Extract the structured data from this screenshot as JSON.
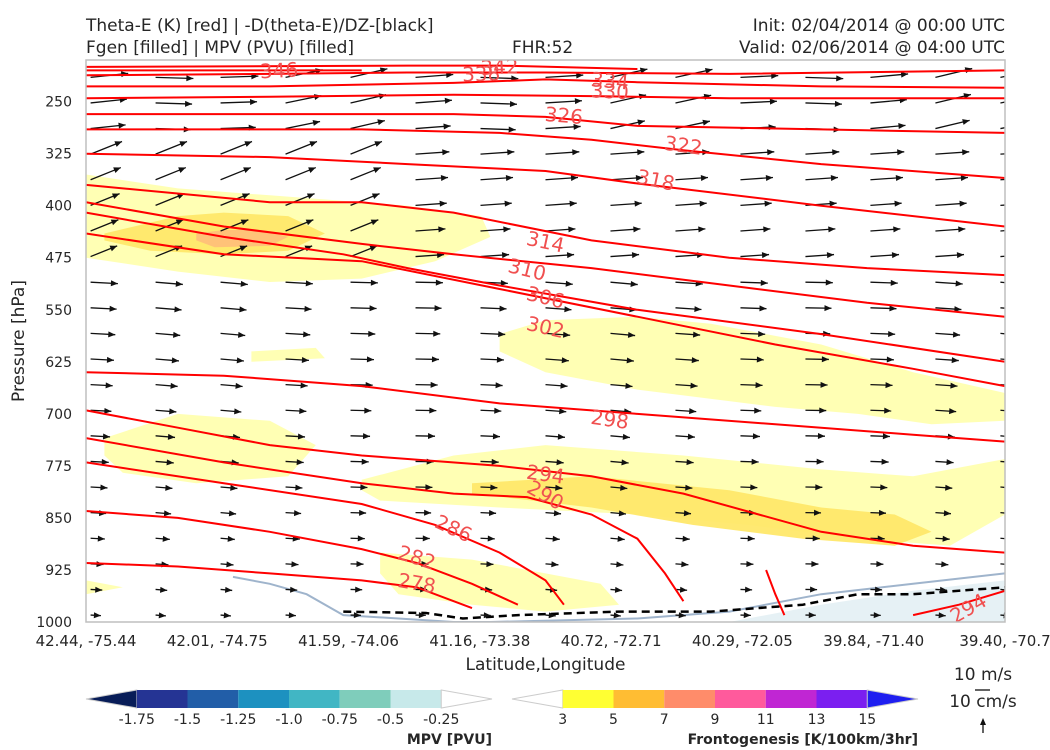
{
  "header": {
    "title_line1": "Theta-E (K) [red] | -D(theta-E)/DZ-[black]",
    "title_line2": "Fgen [filled] | MPV (PVU) [filled]",
    "fhr": "FHR:52",
    "init": "Init: 02/04/2014 @ 00:00 UTC",
    "valid": "Valid: 02/06/2014 @ 04:00 UTC"
  },
  "chart_data": {
    "type": "cross-section",
    "xlabel": "Latitude,Longitude",
    "ylabel": "Pressure [hPa]",
    "x_ticks": [
      "42.44, -75.44",
      "42.01, -74.75",
      "41.59, -74.06",
      "41.16, -73.38",
      "40.72, -72.71",
      "40.29, -72.05",
      "39.84, -71.40",
      "39.40, -70.7"
    ],
    "y_ticks": [
      250,
      325,
      400,
      475,
      550,
      625,
      700,
      775,
      850,
      925,
      1000
    ],
    "ylim": [
      1000,
      190
    ],
    "y_scale": "linear (inverted)",
    "theta_e_contours": [
      {
        "level": 346,
        "x": [
          0,
          0.1,
          0.2,
          0.3
        ],
        "p": [
          205,
          205,
          205,
          205
        ]
      },
      {
        "level": 342,
        "x": [
          0,
          0.35,
          0.45,
          0.6
        ],
        "p": [
          200,
          198,
          198,
          203
        ]
      },
      {
        "level": 338,
        "x": [
          0,
          0.2,
          0.35,
          0.5,
          0.7,
          1.0
        ],
        "p": [
          212,
          210,
          208,
          208,
          210,
          205
        ]
      },
      {
        "level": 334,
        "x": [
          0,
          0.2,
          0.4,
          0.5,
          0.6,
          0.8,
          1.0
        ],
        "p": [
          228,
          228,
          223,
          218,
          222,
          228,
          230
        ]
      },
      {
        "level": 330,
        "x": [
          0,
          0.2,
          0.4,
          0.55,
          0.7,
          0.9,
          1.0
        ],
        "p": [
          245,
          243,
          240,
          242,
          245,
          245,
          245
        ]
      },
      {
        "level": 326,
        "x": [
          0,
          0.2,
          0.4,
          0.5,
          0.6,
          0.8,
          1.0
        ],
        "p": [
          268,
          268,
          268,
          272,
          285,
          290,
          295
        ]
      },
      {
        "level": 322,
        "x": [
          0,
          0.3,
          0.45,
          0.55,
          0.65,
          0.8,
          1.0
        ],
        "p": [
          290,
          290,
          295,
          305,
          320,
          340,
          360
        ]
      },
      {
        "level": 318,
        "x": [
          0,
          0.2,
          0.35,
          0.5,
          0.6,
          0.8,
          1.0
        ],
        "p": [
          325,
          330,
          340,
          350,
          368,
          400,
          430
        ]
      },
      {
        "level": 314,
        "x": [
          0,
          0.2,
          0.3,
          0.4,
          0.55,
          0.7,
          0.85,
          1.0
        ],
        "p": [
          370,
          395,
          395,
          410,
          450,
          475,
          490,
          500
        ]
      },
      {
        "level": 310,
        "x": [
          0,
          0.15,
          0.3,
          0.4,
          0.55,
          0.7,
          0.85,
          1.0
        ],
        "p": [
          395,
          430,
          455,
          470,
          490,
          515,
          540,
          560
        ]
      },
      {
        "level": 306,
        "x": [
          0,
          0.15,
          0.28,
          0.35,
          0.45,
          0.6,
          0.8,
          1.0
        ],
        "p": [
          410,
          445,
          470,
          490,
          515,
          550,
          585,
          625
        ]
      },
      {
        "level": 302,
        "x": [
          0,
          0.15,
          0.3,
          0.45,
          0.6,
          0.75,
          0.9,
          1.0
        ],
        "p": [
          440,
          470,
          480,
          520,
          560,
          600,
          635,
          660
        ]
      },
      {
        "level": 298,
        "x": [
          0,
          0.15,
          0.3,
          0.45,
          0.6,
          0.75,
          0.9,
          1.0
        ],
        "p": [
          640,
          645,
          660,
          685,
          700,
          715,
          730,
          740
        ]
      },
      {
        "level": 294,
        "x": [
          0,
          0.1,
          0.2,
          0.3,
          0.45,
          0.55,
          0.65,
          0.8,
          0.9,
          1.0
        ],
        "p": [
          695,
          720,
          745,
          760,
          775,
          790,
          815,
          870,
          890,
          900
        ]
      },
      {
        "level": 290,
        "x": [
          0,
          0.15,
          0.3,
          0.4,
          0.48,
          0.55,
          0.6,
          0.63,
          0.65
        ],
        "p": [
          735,
          770,
          800,
          815,
          820,
          845,
          880,
          930,
          970
        ]
      },
      {
        "level": 286,
        "x": [
          0,
          0.15,
          0.3,
          0.38,
          0.45,
          0.5,
          0.52
        ],
        "p": [
          770,
          800,
          830,
          860,
          900,
          940,
          975
        ]
      },
      {
        "level": 282,
        "x": [
          0,
          0.1,
          0.2,
          0.3,
          0.36,
          0.42,
          0.47
        ],
        "p": [
          840,
          850,
          870,
          895,
          915,
          945,
          975
        ]
      },
      {
        "level": 278,
        "x": [
          0,
          0.1,
          0.2,
          0.3,
          0.36,
          0.42
        ],
        "p": [
          915,
          920,
          930,
          940,
          950,
          980
        ]
      },
      {
        "level": 294,
        "x": [
          0.74,
          0.75,
          0.76
        ],
        "p": [
          925,
          960,
          990
        ]
      },
      {
        "level": 294,
        "x": [
          0.9,
          0.95,
          1.0
        ],
        "p": [
          990,
          975,
          955
        ]
      }
    ],
    "contour_labels": [
      {
        "text": "346",
        "x": 0.21,
        "p": 205,
        "rot": -3
      },
      {
        "text": "342",
        "x": 0.45,
        "p": 200,
        "rot": -3
      },
      {
        "text": "338",
        "x": 0.43,
        "p": 210,
        "rot": -2
      },
      {
        "text": "334",
        "x": 0.57,
        "p": 220,
        "rot": 5
      },
      {
        "text": "330",
        "x": 0.57,
        "p": 235,
        "rot": 3
      },
      {
        "text": "326",
        "x": 0.52,
        "p": 270,
        "rot": 5
      },
      {
        "text": "322",
        "x": 0.65,
        "p": 313,
        "rot": 8
      },
      {
        "text": "318",
        "x": 0.62,
        "p": 363,
        "rot": 12
      },
      {
        "text": "314",
        "x": 0.5,
        "p": 452,
        "rot": 12
      },
      {
        "text": "310",
        "x": 0.48,
        "p": 492,
        "rot": 14
      },
      {
        "text": "306",
        "x": 0.5,
        "p": 532,
        "rot": 14
      },
      {
        "text": "302",
        "x": 0.5,
        "p": 575,
        "rot": 13
      },
      {
        "text": "298",
        "x": 0.57,
        "p": 708,
        "rot": 8
      },
      {
        "text": "294",
        "x": 0.5,
        "p": 787,
        "rot": 8
      },
      {
        "text": "290",
        "x": 0.5,
        "p": 817,
        "rot": 30
      },
      {
        "text": "286",
        "x": 0.4,
        "p": 865,
        "rot": 25
      },
      {
        "text": "282",
        "x": 0.36,
        "p": 907,
        "rot": 18
      },
      {
        "text": "278",
        "x": 0.36,
        "p": 944,
        "rot": 10
      },
      {
        "text": "294",
        "x": 0.96,
        "p": 980,
        "rot": -30
      }
    ],
    "fgen_regions": [
      {
        "level": 3,
        "x": [
          0,
          0.1,
          0.2,
          0.3,
          0.35,
          0.43,
          0.44,
          0.38,
          0.3,
          0.2,
          0.1,
          0
        ],
        "p": [
          355,
          375,
          385,
          395,
          400,
          415,
          445,
          480,
          505,
          510,
          495,
          475
        ]
      },
      {
        "level": 5,
        "x": [
          0.02,
          0.1,
          0.15,
          0.22,
          0.26,
          0.22,
          0.15,
          0.07,
          0.02
        ],
        "p": [
          440,
          415,
          410,
          415,
          440,
          465,
          470,
          465,
          450
        ]
      },
      {
        "level": 7,
        "x": [
          0.12,
          0.15,
          0.19,
          0.22,
          0.2,
          0.14,
          0.12
        ],
        "p": [
          440,
          435,
          435,
          445,
          458,
          460,
          450
        ]
      },
      {
        "level": 3,
        "x": [
          0.45,
          0.5,
          0.6,
          0.68,
          0.8,
          0.9,
          1.0,
          1.0,
          0.92,
          0.84,
          0.75,
          0.6,
          0.5,
          0.45
        ],
        "p": [
          585,
          565,
          560,
          570,
          600,
          640,
          670,
          710,
          715,
          700,
          690,
          665,
          640,
          610
        ]
      },
      {
        "level": 3,
        "x": [
          0.18,
          0.25,
          0.26,
          0.18
        ],
        "p": [
          610,
          605,
          620,
          625
        ]
      },
      {
        "level": 3,
        "x": [
          0.02,
          0.1,
          0.2,
          0.25,
          0.22,
          0.12,
          0.04,
          0.02
        ],
        "p": [
          735,
          700,
          710,
          745,
          790,
          800,
          785,
          760
        ]
      },
      {
        "level": 3,
        "x": [
          0.3,
          0.4,
          0.5,
          0.65,
          0.8,
          0.9,
          1.0,
          1.0,
          0.94,
          0.84,
          0.72,
          0.6,
          0.45,
          0.32,
          0.3
        ],
        "p": [
          795,
          760,
          745,
          760,
          780,
          790,
          765,
          845,
          890,
          880,
          860,
          845,
          835,
          825,
          810
        ]
      },
      {
        "level": 5,
        "x": [
          0.42,
          0.55,
          0.7,
          0.8,
          0.88,
          0.92,
          0.88,
          0.78,
          0.66,
          0.55,
          0.42
        ],
        "p": [
          800,
          790,
          810,
          835,
          845,
          870,
          890,
          880,
          860,
          835,
          815
        ]
      },
      {
        "level": 3,
        "x": [
          0.32,
          0.42,
          0.5,
          0.56,
          0.58,
          0.5,
          0.42,
          0.34,
          0.32
        ],
        "p": [
          900,
          910,
          930,
          945,
          975,
          985,
          975,
          960,
          930
        ]
      },
      {
        "level": 3,
        "x": [
          0,
          0.04,
          0.0
        ],
        "p": [
          940,
          950,
          960
        ]
      }
    ],
    "mpv_region": {
      "level": -0.25,
      "x": [
        0.7,
        0.8,
        0.9,
        1.0,
        1.0,
        0.85,
        0.7
      ],
      "p": [
        1000,
        975,
        955,
        940,
        1000,
        1000,
        1000
      ]
    },
    "terrain": {
      "x": [
        0.16,
        0.2,
        0.24,
        0.28,
        0.34,
        0.4,
        0.44,
        0.6,
        0.7,
        0.8,
        0.9,
        1.0
      ],
      "p": [
        935,
        945,
        960,
        990,
        995,
        1000,
        1000,
        995,
        985,
        960,
        945,
        930
      ]
    },
    "dashed_line": {
      "x": [
        0.28,
        0.37,
        0.41,
        0.47,
        0.58,
        0.68,
        0.78,
        0.84,
        0.9,
        1.0
      ],
      "p": [
        985,
        987,
        995,
        990,
        985,
        985,
        975,
        960,
        960,
        950
      ]
    },
    "wind_vectors": {
      "description": "westerly wind vectors, stronger aloft",
      "scale_reference": {
        "horizontal": "10 m/s",
        "vertical": "10 cm/s"
      }
    },
    "colorbar_mpv": {
      "label": "MPV [PVU]",
      "ticks": [
        "-1.75",
        "-1.5",
        "-1.25",
        "-1.0",
        "-0.75",
        "-0.5",
        "-0.25"
      ],
      "colors": [
        "#081d58",
        "#253494",
        "#225ea8",
        "#1d91c0",
        "#41b6c4",
        "#7fcdbb",
        "#c7e9ea",
        "#ffffff"
      ]
    },
    "colorbar_fgen": {
      "label": "Frontogenesis [K/100km/3hr]",
      "ticks": [
        "3",
        "5",
        "7",
        "9",
        "11",
        "13",
        "15"
      ],
      "colors": [
        "#ffffff",
        "#ffff33",
        "#ffbd33",
        "#ff8c6a",
        "#ff5a9c",
        "#c026d3",
        "#7b1ff0",
        "#1f1ff0"
      ]
    },
    "fill_colors": {
      "3": "#ffffb0",
      "5": "#ffe86a",
      "7": "#ffc078",
      "mpv": "#e6f1f5"
    },
    "contour_color": "#ff0000",
    "label_color": "#f05050",
    "grid": false
  }
}
